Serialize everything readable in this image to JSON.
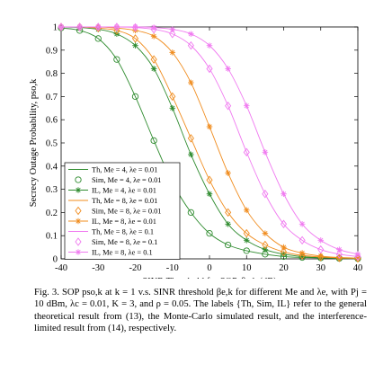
{
  "chart_data": {
    "type": "line",
    "xlabel": "SINR Threshold for SOP, βe,k (dB)",
    "ylabel": "Secrecy Outage Probability, pso,k",
    "xlim": [
      -40,
      40
    ],
    "ylim": [
      0,
      1
    ],
    "x_ticks": [
      -40,
      -30,
      -20,
      -10,
      0,
      10,
      20,
      30,
      40
    ],
    "y_ticks": [
      0,
      0.1,
      0.2,
      0.3,
      0.4,
      0.5,
      0.6,
      0.7,
      0.8,
      0.9,
      1
    ],
    "x_tick_labels": [
      "-40",
      "-30",
      "-20",
      "-10",
      "0",
      "10",
      "20",
      "30",
      "40"
    ],
    "y_tick_labels": [
      "0",
      "0.1",
      "0.2",
      "0.3",
      "0.4",
      "0.5",
      "0.6",
      "0.7",
      "0.8",
      "0.9",
      "1"
    ],
    "grid": false,
    "legend_position": "bottom-left",
    "x": [
      -40,
      -35,
      -30,
      -25,
      -20,
      -15,
      -10,
      -5,
      0,
      5,
      10,
      15,
      20,
      25,
      30,
      35,
      40
    ],
    "series": [
      {
        "name": "Th, Me = 4, λe = 0.01",
        "color": "#2e8b2e",
        "style": "solid",
        "marker": "none",
        "values": [
          0.996,
          0.985,
          0.95,
          0.86,
          0.7,
          0.51,
          0.33,
          0.2,
          0.11,
          0.06,
          0.035,
          0.02,
          0.01,
          0.006,
          0.004,
          0.002,
          0.001
        ]
      },
      {
        "name": "Sim, Me = 4, λe = 0.01",
        "color": "#2e8b2e",
        "style": "none",
        "marker": "circle",
        "values": [
          0.996,
          0.985,
          0.95,
          0.86,
          0.7,
          0.51,
          0.33,
          0.2,
          0.11,
          0.06,
          0.035,
          0.02,
          0.01,
          0.006,
          0.004,
          0.002,
          0.001
        ]
      },
      {
        "name": "IL, Me = 4, λe = 0.01",
        "color": "#2e8b2e",
        "style": "solid",
        "marker": "star",
        "values": [
          1.0,
          0.998,
          0.99,
          0.97,
          0.92,
          0.82,
          0.65,
          0.45,
          0.28,
          0.15,
          0.08,
          0.04,
          0.02,
          0.01,
          0.005,
          0.003,
          0.002
        ]
      },
      {
        "name": "Th, Me = 8, λe = 0.01",
        "color": "#f08c1e",
        "style": "solid",
        "marker": "none",
        "values": [
          1.0,
          1.0,
          0.995,
          0.985,
          0.95,
          0.86,
          0.7,
          0.52,
          0.34,
          0.2,
          0.11,
          0.06,
          0.03,
          0.015,
          0.008,
          0.004,
          0.002
        ]
      },
      {
        "name": "Sim, Me = 8, λe = 0.01",
        "color": "#f08c1e",
        "style": "none",
        "marker": "diamond",
        "values": [
          1.0,
          1.0,
          0.995,
          0.985,
          0.95,
          0.86,
          0.7,
          0.52,
          0.34,
          0.2,
          0.11,
          0.06,
          0.03,
          0.015,
          0.008,
          0.004,
          0.002
        ]
      },
      {
        "name": "IL, Me = 8, λe = 0.01",
        "color": "#f08c1e",
        "style": "solid",
        "marker": "star",
        "values": [
          1.0,
          1.0,
          1.0,
          0.995,
          0.985,
          0.96,
          0.89,
          0.76,
          0.57,
          0.37,
          0.21,
          0.11,
          0.05,
          0.025,
          0.012,
          0.006,
          0.003
        ]
      },
      {
        "name": "Th, Me = 8, λe = 0.1",
        "color": "#f07af0",
        "style": "solid",
        "marker": "none",
        "values": [
          1.0,
          1.0,
          1.0,
          1.0,
          0.998,
          0.99,
          0.97,
          0.92,
          0.82,
          0.66,
          0.46,
          0.28,
          0.15,
          0.08,
          0.04,
          0.02,
          0.01
        ]
      },
      {
        "name": "Sim, Me = 8, λe = 0.1",
        "color": "#f07af0",
        "style": "none",
        "marker": "diamond",
        "values": [
          1.0,
          1.0,
          1.0,
          1.0,
          0.998,
          0.99,
          0.97,
          0.92,
          0.82,
          0.66,
          0.46,
          0.28,
          0.15,
          0.08,
          0.04,
          0.02,
          0.01
        ]
      },
      {
        "name": "IL, Me = 8, λe = 0.1",
        "color": "#f07af0",
        "style": "solid",
        "marker": "star",
        "values": [
          1.0,
          1.0,
          1.0,
          1.0,
          1.0,
          0.998,
          0.99,
          0.97,
          0.92,
          0.82,
          0.66,
          0.46,
          0.28,
          0.15,
          0.08,
          0.04,
          0.02
        ]
      }
    ]
  },
  "caption": "Fig. 3.   SOP pso,k at k = 1 v.s. SINR threshold βe,k for different Me and λe, with Pj = 10 dBm, λc = 0.01, K = 3, and ρ = 0.05. The labels {Th, Sim, IL} refer to the general theoretical result from (13), the Monte-Carlo simulated result, and the interference-limited result from (14), respectively."
}
